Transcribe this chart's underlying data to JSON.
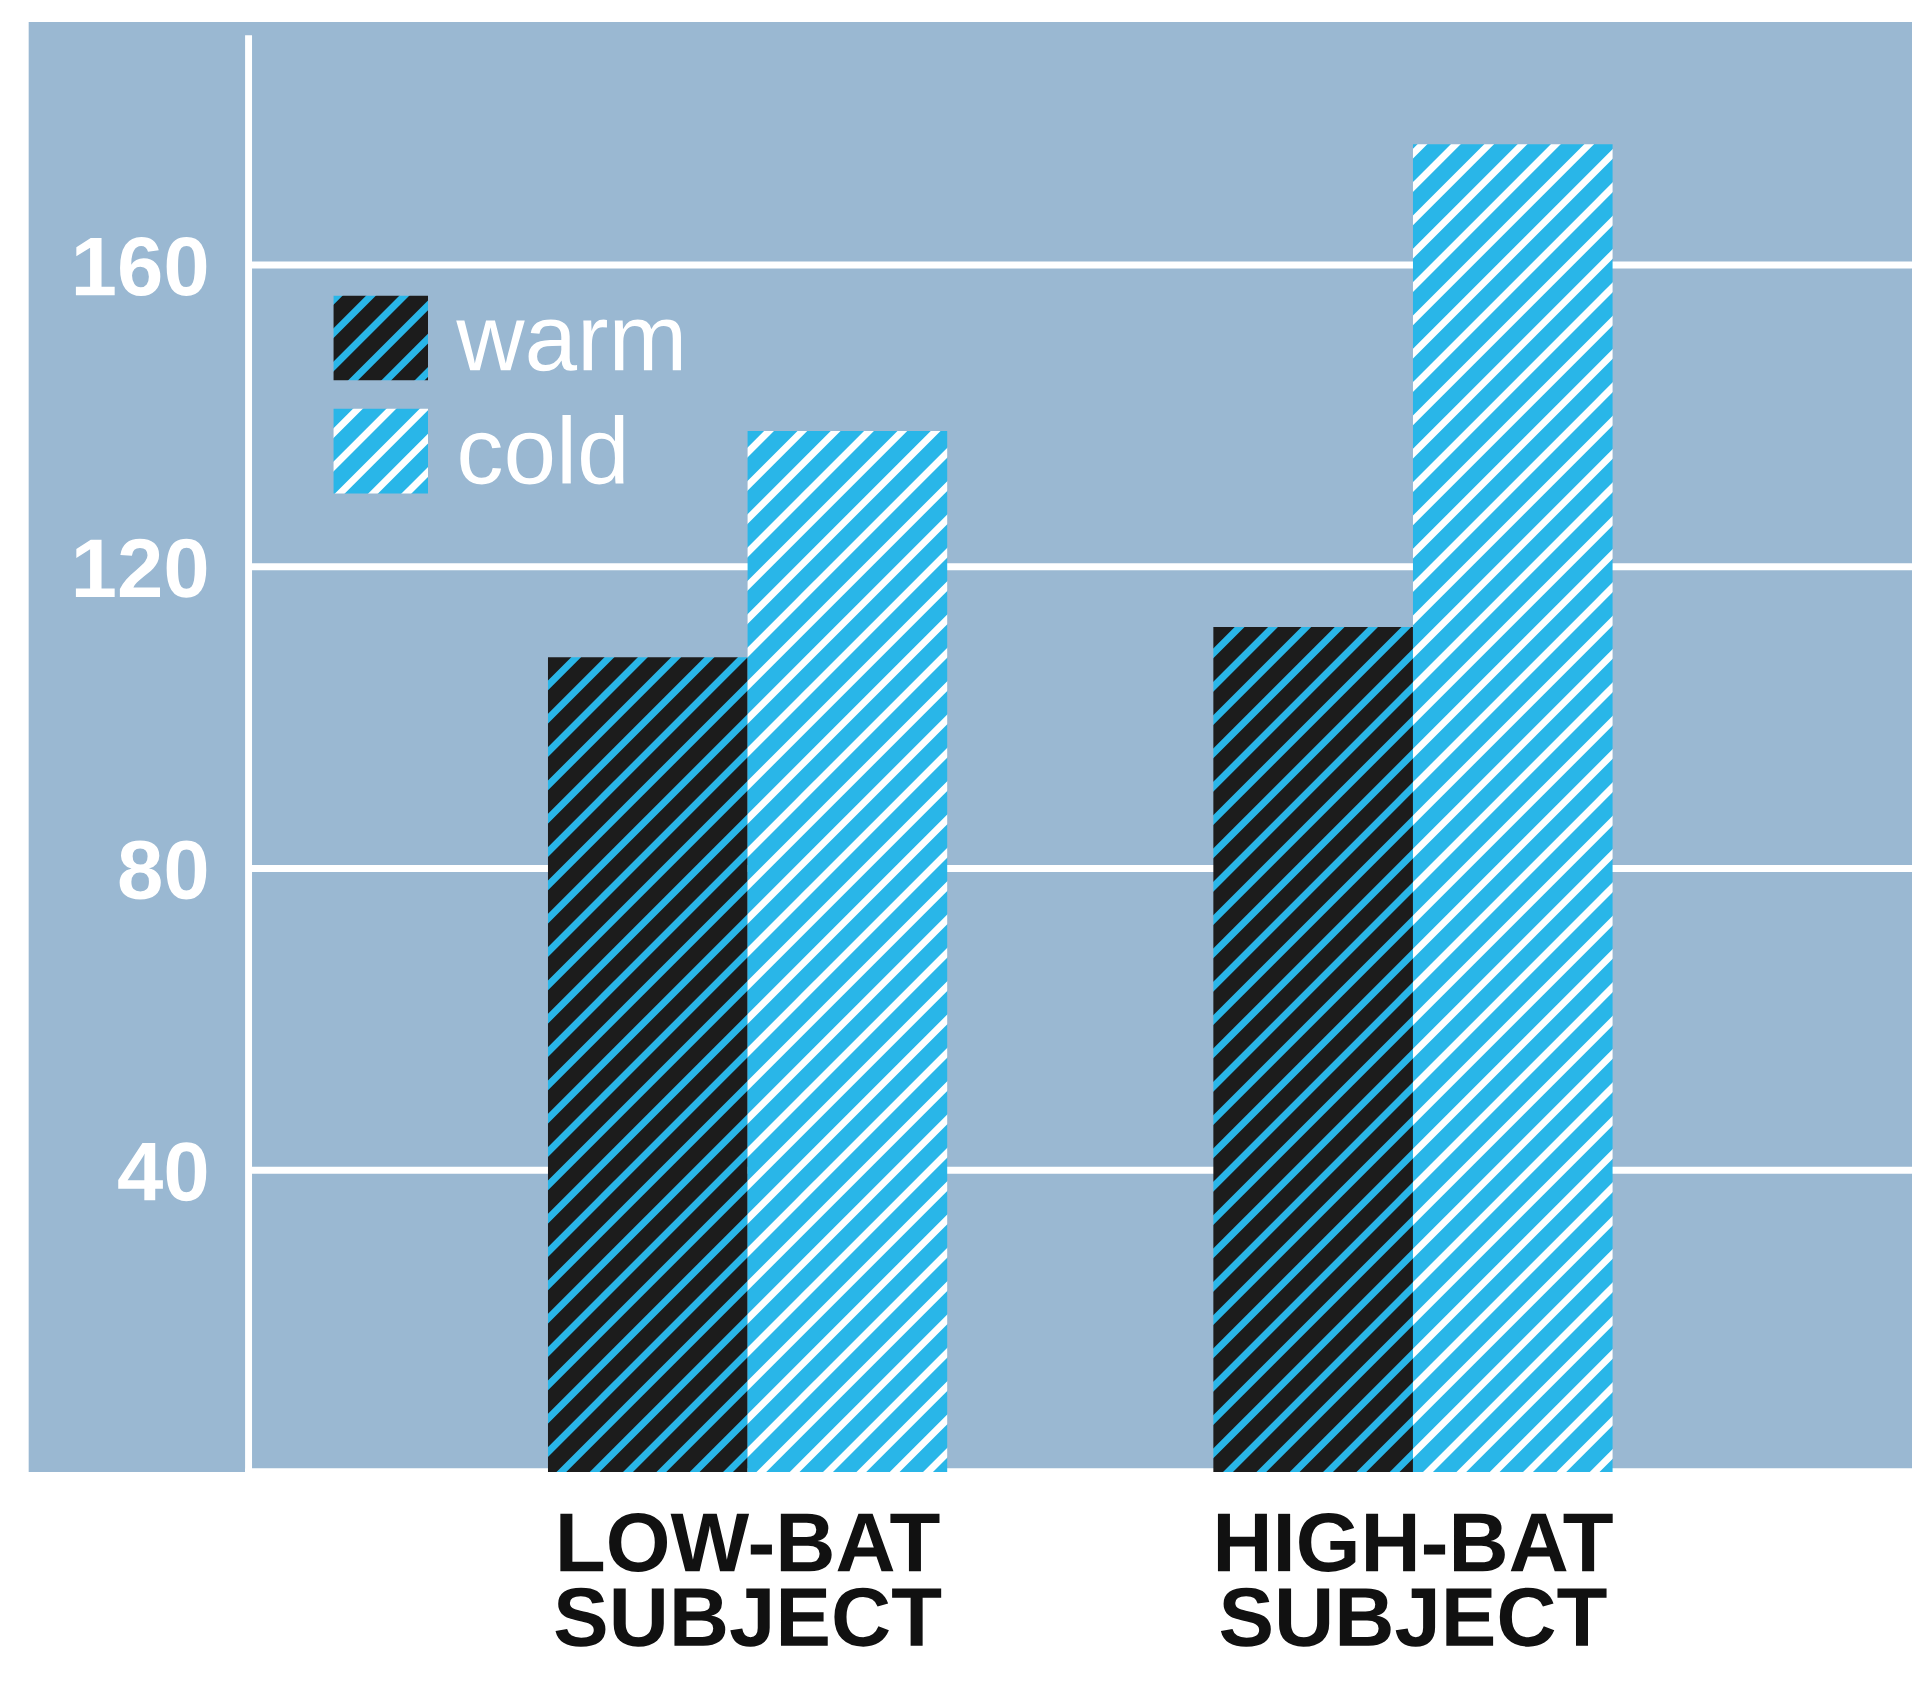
{
  "chart_data": {
    "type": "bar",
    "categories": [
      "LOW-BAT\nSUBJECT",
      "HIGH-BAT\nSUBJECT"
    ],
    "series": [
      {
        "name": "warm",
        "color": "#1c1c1c",
        "values": [
          108,
          112
        ]
      },
      {
        "name": "cold",
        "color": "#29b6e8",
        "values": [
          138,
          176
        ]
      }
    ],
    "ylim": [
      0,
      190
    ],
    "yticks": [
      {
        "value": 0,
        "label": null
      },
      40,
      80,
      120,
      160
    ],
    "grid": "y",
    "legend": "top left"
  }
}
